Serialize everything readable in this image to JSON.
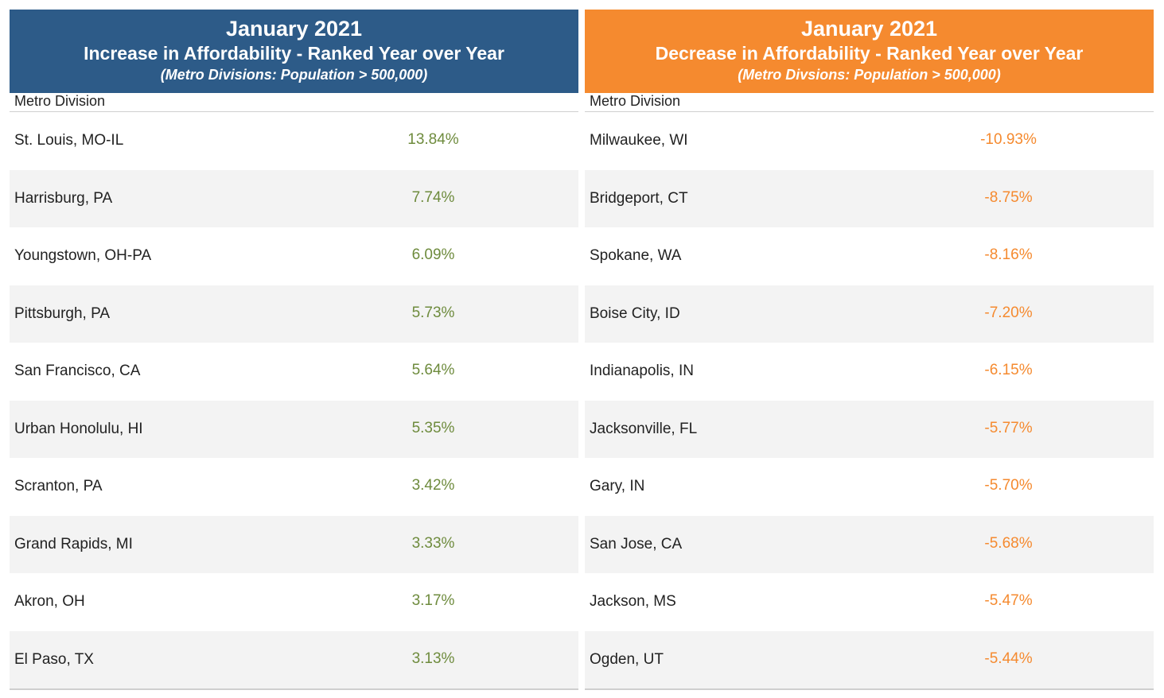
{
  "colors": {
    "increase_header": "#2d5b88",
    "decrease_header": "#f58a2f",
    "increase_value": "#6e8b3d",
    "decrease_value": "#f58a2f"
  },
  "increase": {
    "title": "January 2021",
    "subtitle": "Increase in Affordability - Ranked Year over Year",
    "note": "(Metro Divisions: Population > 500,000)",
    "column_header": "Metro Division",
    "rows": [
      {
        "name": "St. Louis, MO-IL",
        "value": "13.84%"
      },
      {
        "name": "Harrisburg, PA",
        "value": "7.74%"
      },
      {
        "name": "Youngstown, OH-PA",
        "value": "6.09%"
      },
      {
        "name": "Pittsburgh, PA",
        "value": "5.73%"
      },
      {
        "name": "San Francisco, CA",
        "value": "5.64%"
      },
      {
        "name": "Urban Honolulu, HI",
        "value": "5.35%"
      },
      {
        "name": "Scranton, PA",
        "value": "3.42%"
      },
      {
        "name": "Grand Rapids, MI",
        "value": "3.33%"
      },
      {
        "name": "Akron, OH",
        "value": "3.17%"
      },
      {
        "name": "El Paso, TX",
        "value": "3.13%"
      }
    ]
  },
  "decrease": {
    "title": "January 2021",
    "subtitle": "Decrease in Affordability - Ranked Year over Year",
    "note": "(Metro Divsions: Population > 500,000)",
    "column_header": "Metro Division",
    "rows": [
      {
        "name": "Milwaukee, WI",
        "value": "-10.93%"
      },
      {
        "name": "Bridgeport, CT",
        "value": "-8.75%"
      },
      {
        "name": "Spokane, WA",
        "value": "-8.16%"
      },
      {
        "name": "Boise City, ID",
        "value": "-7.20%"
      },
      {
        "name": "Indianapolis, IN",
        "value": "-6.15%"
      },
      {
        "name": "Jacksonville, FL",
        "value": "-5.77%"
      },
      {
        "name": "Gary, IN",
        "value": "-5.70%"
      },
      {
        "name": "San Jose, CA",
        "value": "-5.68%"
      },
      {
        "name": "Jackson, MS",
        "value": "-5.47%"
      },
      {
        "name": "Ogden, UT",
        "value": "-5.44%"
      }
    ]
  }
}
